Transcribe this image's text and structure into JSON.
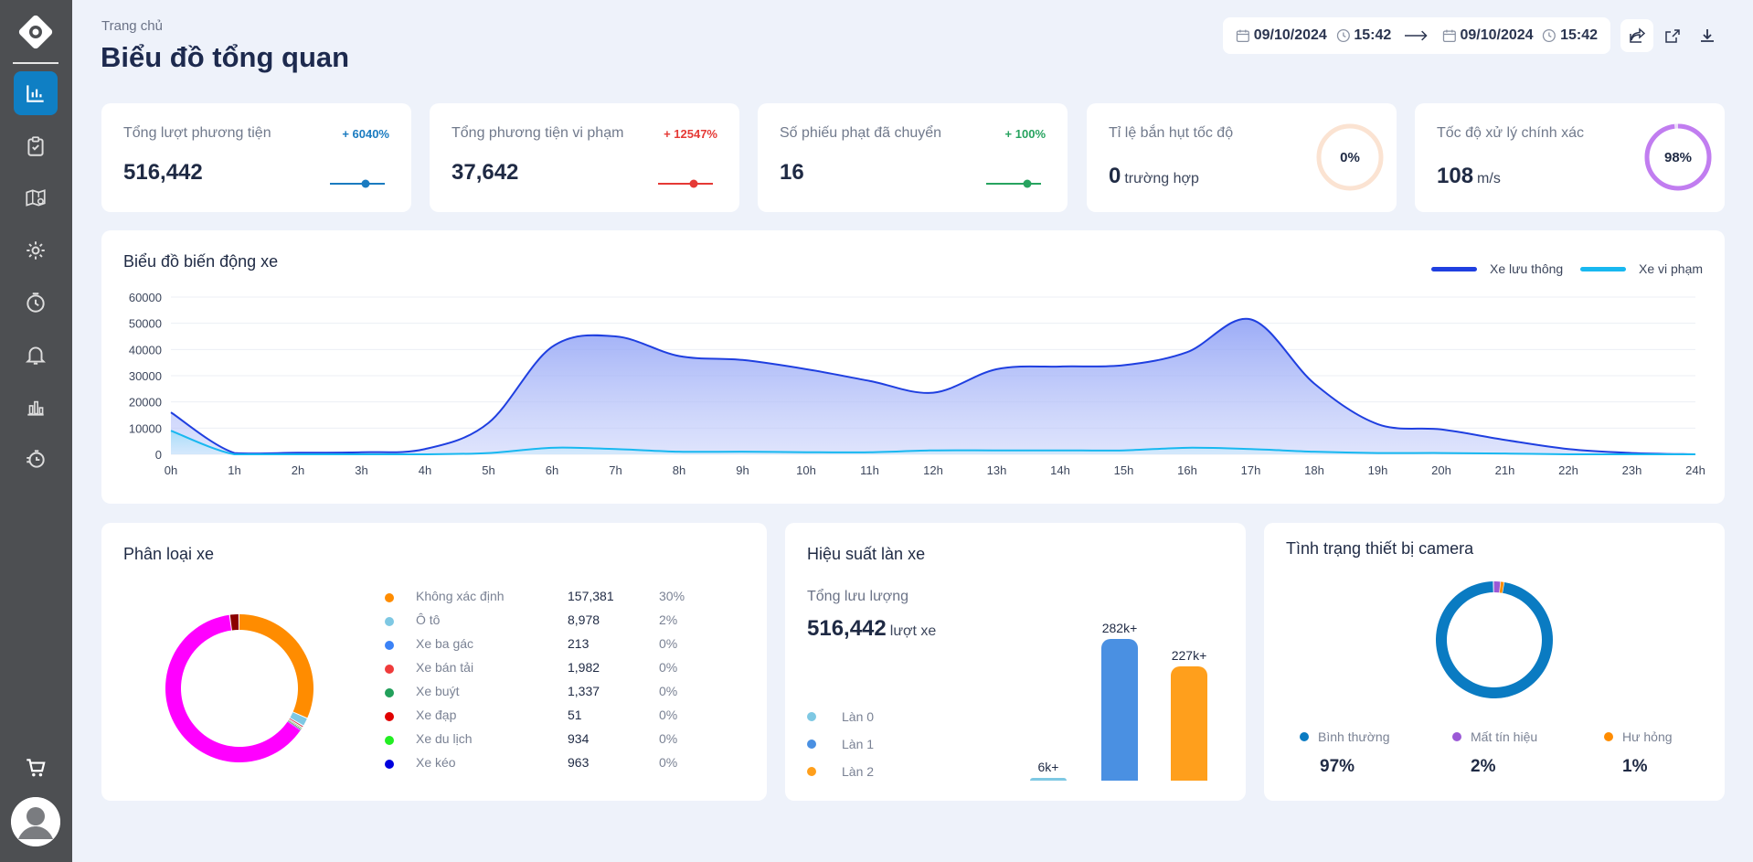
{
  "header": {
    "breadcrumb": "Trang chủ",
    "title": "Biểu đồ tổng quan",
    "date_from": "09/10/2024",
    "time_from": "15:42",
    "date_to": "09/10/2024",
    "time_to": "15:42"
  },
  "stats": [
    {
      "label": "Tổng lượt phương tiện",
      "value": "516,442",
      "change": "+ 6040%",
      "color": "#1a7bc0"
    },
    {
      "label": "Tổng phương tiện vi phạm",
      "value": "37,642",
      "change": "+ 12547%",
      "color": "#e53935"
    },
    {
      "label": "Số phiếu phạt đã chuyển",
      "value": "16",
      "change": "+ 100%",
      "color": "#27a35f"
    },
    {
      "label": "Tỉ lệ bắn hụt tốc độ",
      "value": "0",
      "unit": "trường hợp",
      "ring": "0%",
      "ring_fraction": 0,
      "color": "#fbe3d2"
    },
    {
      "label": "Tốc độ xử lý chính xác",
      "value": "108",
      "unit": "m/s",
      "ring": "98%",
      "ring_fraction": 0.98,
      "color": "#c17df0"
    }
  ],
  "line_chart": {
    "title": "Biểu đồ biến động xe",
    "legend": [
      {
        "name": "Xe lưu thông",
        "color": "#1f3fe0"
      },
      {
        "name": "Xe vi phạm",
        "color": "#18b8f0"
      }
    ]
  },
  "chart_data": {
    "type": "area",
    "x": [
      "0h",
      "1h",
      "2h",
      "3h",
      "4h",
      "5h",
      "6h",
      "7h",
      "8h",
      "9h",
      "10h",
      "11h",
      "12h",
      "13h",
      "14h",
      "15h",
      "16h",
      "17h",
      "18h",
      "19h",
      "20h",
      "21h",
      "22h",
      "23h",
      "24h"
    ],
    "series": [
      {
        "name": "Xe lưu thông",
        "values": [
          16000,
          500,
          600,
          800,
          2000,
          12000,
          41000,
          45000,
          37500,
          36000,
          32500,
          28000,
          23500,
          32500,
          33500,
          34000,
          39000,
          51500,
          27000,
          11500,
          9500,
          5500,
          2000,
          500,
          0
        ]
      },
      {
        "name": "Xe vi phạm",
        "values": [
          9000,
          0,
          0,
          0,
          0,
          500,
          2500,
          2000,
          1000,
          1000,
          800,
          800,
          1500,
          1500,
          1500,
          1500,
          2500,
          2000,
          1000,
          500,
          500,
          300,
          0,
          0,
          0
        ]
      }
    ],
    "yticks": [
      0,
      10000,
      20000,
      30000,
      40000,
      50000,
      60000
    ],
    "ylim": [
      0,
      60000
    ]
  },
  "classification": {
    "title": "Phân loại xe",
    "items": [
      {
        "name": "Không xác định",
        "count": "157,381",
        "pct": "30%",
        "value": 157381,
        "color": "#ff8c00"
      },
      {
        "name": "Ô tô",
        "count": "8,978",
        "pct": "2%",
        "value": 8978,
        "color": "#7ec8e3"
      },
      {
        "name": "Xe ba gác",
        "count": "213",
        "pct": "0%",
        "value": 213,
        "color": "#3b82f6"
      },
      {
        "name": "Xe bán tải",
        "count": "1,982",
        "pct": "0%",
        "value": 1982,
        "color": "#ef3b3b"
      },
      {
        "name": "Xe buýt",
        "count": "1,337",
        "pct": "0%",
        "value": 1337,
        "color": "#22a05b"
      },
      {
        "name": "Xe đạp",
        "count": "51",
        "pct": "0%",
        "value": 51,
        "color": "#e00000"
      },
      {
        "name": "Xe du lịch",
        "count": "934",
        "pct": "0%",
        "value": 934,
        "color": "#22ee22"
      },
      {
        "name": "Xe kéo",
        "count": "963",
        "pct": "0%",
        "value": 963,
        "color": "#0000dd"
      }
    ],
    "donut_extra": [
      {
        "value": 314000,
        "color": "#ff00ff"
      },
      {
        "value": 10000,
        "color": "#8b0000"
      }
    ]
  },
  "lanes": {
    "title": "Hiệu suất làn xe",
    "subtitle": "Tổng lưu lượng",
    "total": "516,442",
    "unit": "lượt xe",
    "items": [
      {
        "name": "Làn 0",
        "label": "6k+",
        "value": 6000,
        "color": "#7ec8e3"
      },
      {
        "name": "Làn 1",
        "label": "282k+",
        "value": 282000,
        "color": "#4a90e2"
      },
      {
        "name": "Làn 2",
        "label": "227k+",
        "value": 227000,
        "color": "#ff9f1c"
      }
    ]
  },
  "camera": {
    "title": "Tình trạng thiết bị camera",
    "items": [
      {
        "name": "Bình thường",
        "pct": "97%",
        "value": 97,
        "color": "#0a7bc2"
      },
      {
        "name": "Mất tín hiệu",
        "pct": "2%",
        "value": 2,
        "color": "#9b59d6"
      },
      {
        "name": "Hư hỏng",
        "pct": "1%",
        "value": 1,
        "color": "#ff8c00"
      }
    ]
  }
}
